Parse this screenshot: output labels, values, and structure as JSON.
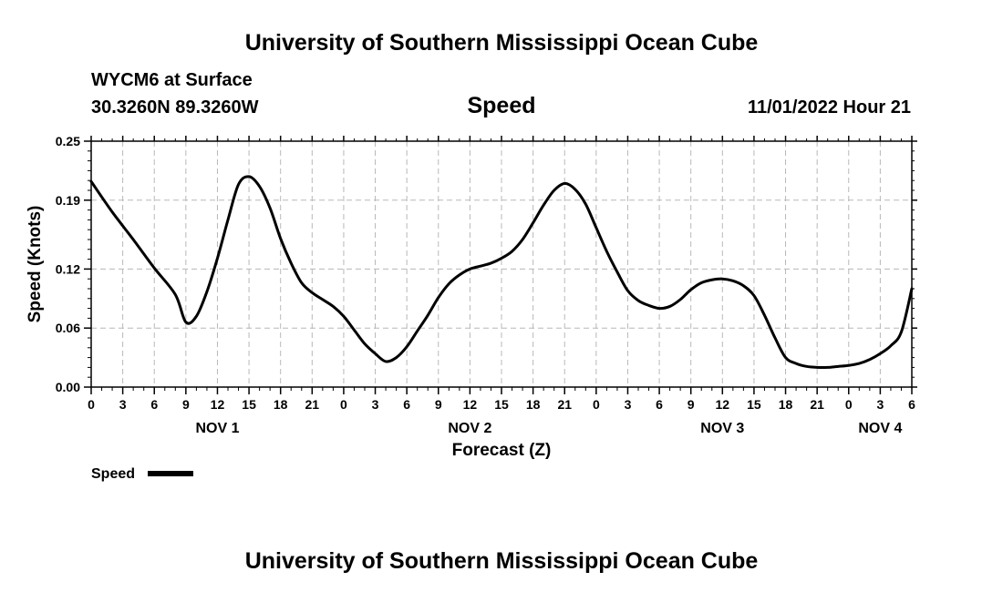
{
  "header": {
    "title": "University of Southern Mississippi Ocean Cube",
    "station": "WYCM6 at Surface",
    "coords": "30.3260N  89.3260W",
    "variable": "Speed",
    "datetime": "11/01/2022 Hour 21"
  },
  "footer": {
    "title": "University of Southern Mississippi Ocean Cube"
  },
  "legend": {
    "label": "Speed"
  },
  "colors": {
    "line": "#000000",
    "grid": "#b8b8b8",
    "axis": "#000000"
  },
  "chart_data": {
    "type": "line",
    "title": "Speed",
    "xlabel": "Forecast (Z)",
    "ylabel": "Speed (Knots)",
    "ylim": [
      0,
      0.25
    ],
    "yticks": [
      0.0,
      0.06,
      0.12,
      0.19,
      0.25
    ],
    "ytick_labels": [
      "0.00",
      "0.06",
      "0.12",
      "0.19",
      "0.25"
    ],
    "xlim": [
      0,
      78
    ],
    "xticks": [
      0,
      3,
      6,
      9,
      12,
      15,
      18,
      21,
      24,
      27,
      30,
      33,
      36,
      39,
      42,
      45,
      48,
      51,
      54,
      57,
      60,
      63,
      66,
      69,
      72,
      75,
      78
    ],
    "xtick_labels": [
      "0",
      "3",
      "6",
      "9",
      "12",
      "15",
      "18",
      "21",
      "0",
      "3",
      "6",
      "9",
      "12",
      "15",
      "18",
      "21",
      "0",
      "3",
      "6",
      "9",
      "12",
      "15",
      "18",
      "21",
      "0",
      "3",
      "6"
    ],
    "day_labels": [
      {
        "label": "NOV 1",
        "hour": 12
      },
      {
        "label": "NOV 2",
        "hour": 36
      },
      {
        "label": "NOV 3",
        "hour": 60
      },
      {
        "label": "NOV 4",
        "hour": 75
      }
    ],
    "grid": true,
    "legend_position": "bottom-left",
    "series": [
      {
        "name": "Speed",
        "hours": [
          0,
          2,
          4,
          6,
          8,
          9,
          10,
          11,
          12,
          13,
          14,
          15,
          16,
          17,
          18,
          19,
          20,
          21,
          22,
          23,
          24,
          25,
          26,
          27,
          28,
          29,
          30,
          31,
          32,
          33,
          34,
          35,
          36,
          37,
          38,
          39,
          40,
          41,
          42,
          43,
          44,
          45,
          46,
          47,
          48,
          49,
          50,
          51,
          52,
          53,
          54,
          55,
          56,
          57,
          58,
          59,
          60,
          61,
          62,
          63,
          64,
          65,
          66,
          67,
          68,
          69,
          70,
          71,
          72,
          73,
          74,
          75,
          76,
          77,
          78
        ],
        "values": [
          0.209,
          0.178,
          0.15,
          0.121,
          0.094,
          0.066,
          0.072,
          0.097,
          0.131,
          0.17,
          0.206,
          0.214,
          0.204,
          0.182,
          0.151,
          0.126,
          0.106,
          0.096,
          0.089,
          0.082,
          0.072,
          0.058,
          0.044,
          0.034,
          0.026,
          0.03,
          0.041,
          0.057,
          0.073,
          0.091,
          0.105,
          0.114,
          0.12,
          0.123,
          0.126,
          0.131,
          0.138,
          0.15,
          0.167,
          0.185,
          0.2,
          0.207,
          0.201,
          0.186,
          0.162,
          0.138,
          0.117,
          0.098,
          0.088,
          0.083,
          0.08,
          0.082,
          0.089,
          0.099,
          0.106,
          0.109,
          0.11,
          0.108,
          0.103,
          0.093,
          0.073,
          0.05,
          0.03,
          0.024,
          0.021,
          0.02,
          0.02,
          0.021,
          0.022,
          0.024,
          0.028,
          0.034,
          0.042,
          0.056,
          0.1
        ]
      }
    ]
  }
}
